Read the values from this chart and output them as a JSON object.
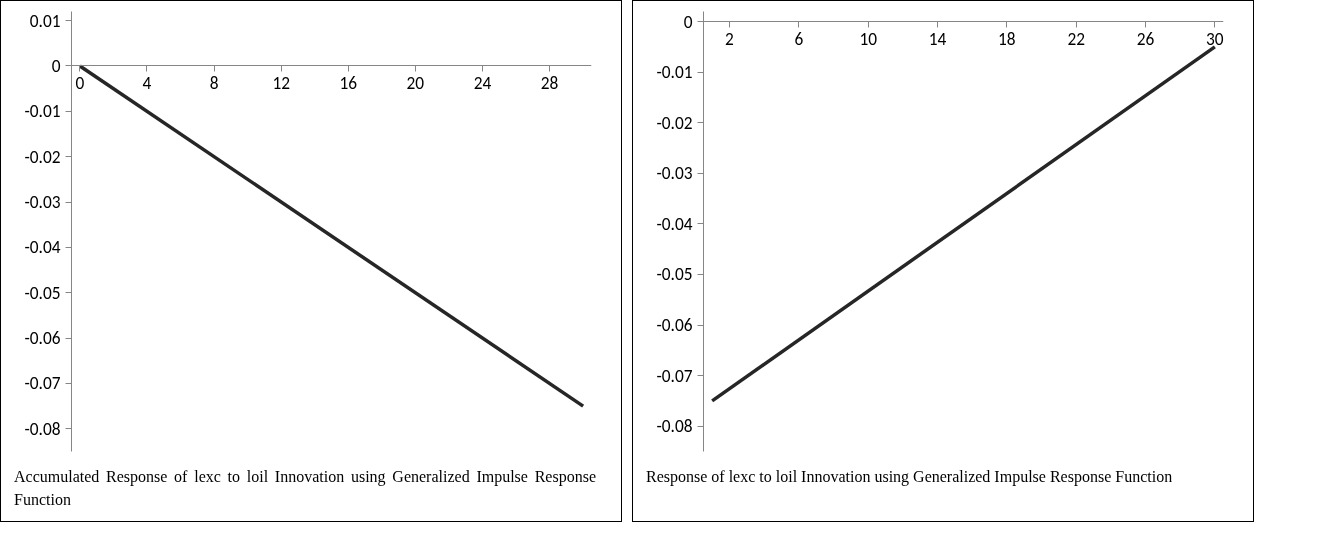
{
  "chart_data": [
    {
      "type": "line",
      "annotations": [
        "Accumulated Response of lexc to loil Innovation using Generalized Impulse Response Function"
      ],
      "series": [
        {
          "color": "#262626",
          "x": [
            0,
            30
          ],
          "values": [
            0,
            -0.075
          ]
        }
      ],
      "xlim": [
        -0.5,
        30.5
      ],
      "xticks": [
        0,
        4,
        8,
        12,
        16,
        20,
        24,
        28
      ],
      "ylim": [
        -0.085,
        0.012
      ],
      "yticks": [
        -0.08,
        -0.07,
        -0.06,
        -0.05,
        -0.04,
        -0.03,
        -0.02,
        -0.01,
        0,
        0.01
      ],
      "grid": false,
      "marker": "none",
      "line_style": "solid"
    },
    {
      "type": "line",
      "annotations": [
        "Response of lexc to loil Innovation using Generalized Impulse Response Function"
      ],
      "series": [
        {
          "color": "#262626",
          "x": [
            1,
            30
          ],
          "values": [
            -0.075,
            -0.005
          ]
        }
      ],
      "xlim": [
        0.5,
        30.5
      ],
      "xticks": [
        2,
        6,
        10,
        14,
        18,
        22,
        26,
        30
      ],
      "ylim": [
        -0.085,
        0.002
      ],
      "yticks": [
        -0.08,
        -0.07,
        -0.06,
        -0.05,
        -0.04,
        -0.03,
        -0.02,
        -0.01,
        0
      ],
      "grid": false,
      "marker": "none",
      "line_style": "solid"
    }
  ]
}
